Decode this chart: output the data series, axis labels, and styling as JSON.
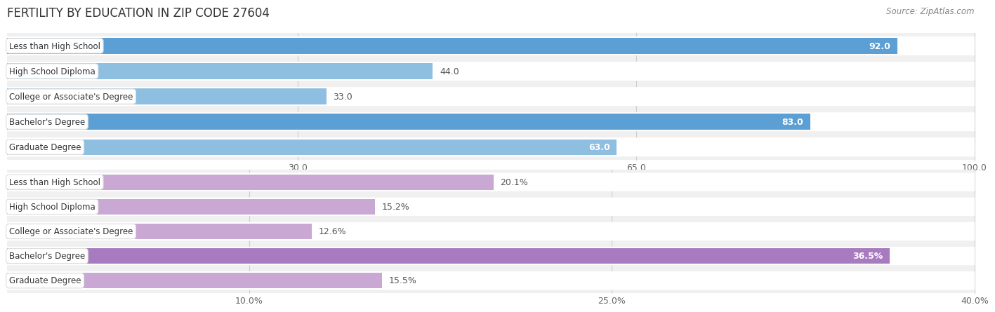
{
  "title": "FERTILITY BY EDUCATION IN ZIP CODE 27604",
  "source": "Source: ZipAtlas.com",
  "top_chart": {
    "categories": [
      "Less than High School",
      "High School Diploma",
      "College or Associate's Degree",
      "Bachelor's Degree",
      "Graduate Degree"
    ],
    "values": [
      92.0,
      44.0,
      33.0,
      83.0,
      63.0
    ],
    "bar_color_normal": "#8fbfe0",
    "bar_color_highlight": "#5b9fd4",
    "highlight_indices": [
      0,
      3
    ],
    "xlim": [
      0,
      100
    ],
    "xticks": [
      30.0,
      65.0,
      100.0
    ],
    "bar_height": 0.62
  },
  "bottom_chart": {
    "categories": [
      "Less than High School",
      "High School Diploma",
      "College or Associate's Degree",
      "Bachelor's Degree",
      "Graduate Degree"
    ],
    "values": [
      20.1,
      15.2,
      12.6,
      36.5,
      15.5
    ],
    "bar_color_normal": "#c9a8d4",
    "bar_color_highlight": "#a87abf",
    "highlight_indices": [
      3
    ],
    "xlim": [
      0,
      40
    ],
    "xticks": [
      10.0,
      25.0,
      40.0
    ],
    "xtick_labels": [
      "10.0%",
      "25.0%",
      "40.0%"
    ],
    "bar_height": 0.62
  },
  "background_color": "#f0f0f0",
  "bar_bg_color": "#ffffff",
  "label_font_size": 9,
  "category_font_size": 8.5,
  "title_font_size": 12,
  "source_font_size": 8.5
}
